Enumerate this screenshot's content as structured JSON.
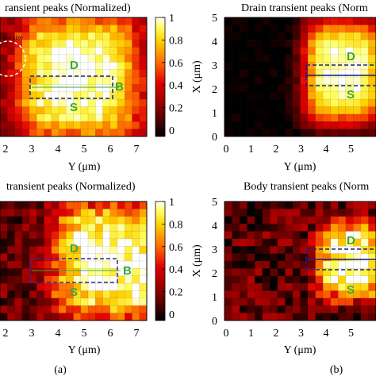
{
  "figure": {
    "sub_labels": [
      "(a)",
      "(b)"
    ]
  },
  "colors": {
    "map_low": "#000000",
    "map_mid_red": "#cc0000",
    "map_orange": "#ff6600",
    "map_yellow": "#ffff00",
    "map_high": "#ffffff",
    "device_label_green": "#3aa83a",
    "drain_box": "#1a237e",
    "source_box": "#1a237e"
  },
  "chart_data": [
    {
      "type": "heatmap",
      "title": "ransient peaks (Normalized)",
      "xlabel": "Y (μm)",
      "x_ticks": [
        "2",
        "3",
        "4",
        "5",
        "6",
        "7"
      ],
      "colorbar_ticks": [
        "1",
        "0.8",
        "0.6",
        "0.4",
        "0.2",
        "0"
      ],
      "value_range": [
        0,
        1
      ],
      "annotations": [
        "D",
        "S",
        "B",
        "pot size"
      ],
      "spot_center_y_um": 1.7,
      "hot_region": {
        "y_center_um": 4.7,
        "x_center_um": 2.5,
        "y_spread_um": 2.4,
        "x_spread_um": 2.6
      },
      "grid": {
        "cols": 20,
        "rows": 16
      }
    },
    {
      "type": "heatmap",
      "title": "Drain transient peaks (Norm",
      "xlabel": "Y (μm)",
      "ylabel": "X (μm)",
      "x_ticks": [
        "0",
        "1",
        "2",
        "3",
        "4",
        "5"
      ],
      "y_ticks": [
        "0",
        "1",
        "2",
        "3",
        "4",
        "5"
      ],
      "value_range": [
        0,
        1
      ],
      "annotations": [
        "D",
        "S"
      ],
      "hot_region": {
        "y_center_um": 4.7,
        "x_center_um": 2.7,
        "y_spread_um": 1.6,
        "x_spread_um": 2.2
      },
      "grid": {
        "cols": 20,
        "rows": 16
      }
    },
    {
      "type": "heatmap",
      "title": "transient peaks (Normalized)",
      "xlabel": "Y (μm)",
      "x_ticks": [
        "2",
        "3",
        "4",
        "5",
        "6",
        "7"
      ],
      "colorbar_ticks": [
        "1",
        "0.8",
        "0.6",
        "0.4",
        "0.2",
        "0"
      ],
      "value_range": [
        0,
        1
      ],
      "annotations": [
        "D",
        "S",
        "B"
      ],
      "hot_region": {
        "y_center_um": 6.1,
        "x_center_um": 2.5,
        "y_spread_um": 2.4,
        "x_spread_um": 2.4
      },
      "grid": {
        "cols": 20,
        "rows": 16
      }
    },
    {
      "type": "heatmap",
      "title": "Body transient peaks (Norm",
      "xlabel": "Y (μm)",
      "ylabel": "X (μm)",
      "x_ticks": [
        "0",
        "1",
        "2",
        "3",
        "4",
        "5"
      ],
      "y_ticks": [
        "0",
        "1",
        "2",
        "3",
        "4",
        "5"
      ],
      "value_range": [
        0,
        1
      ],
      "annotations": [
        "D",
        "S"
      ],
      "hot_region": {
        "y_center_um": 5.0,
        "x_center_um": 2.5,
        "y_spread_um": 1.3,
        "x_spread_um": 1.6
      },
      "grid": {
        "cols": 20,
        "rows": 16
      }
    }
  ]
}
